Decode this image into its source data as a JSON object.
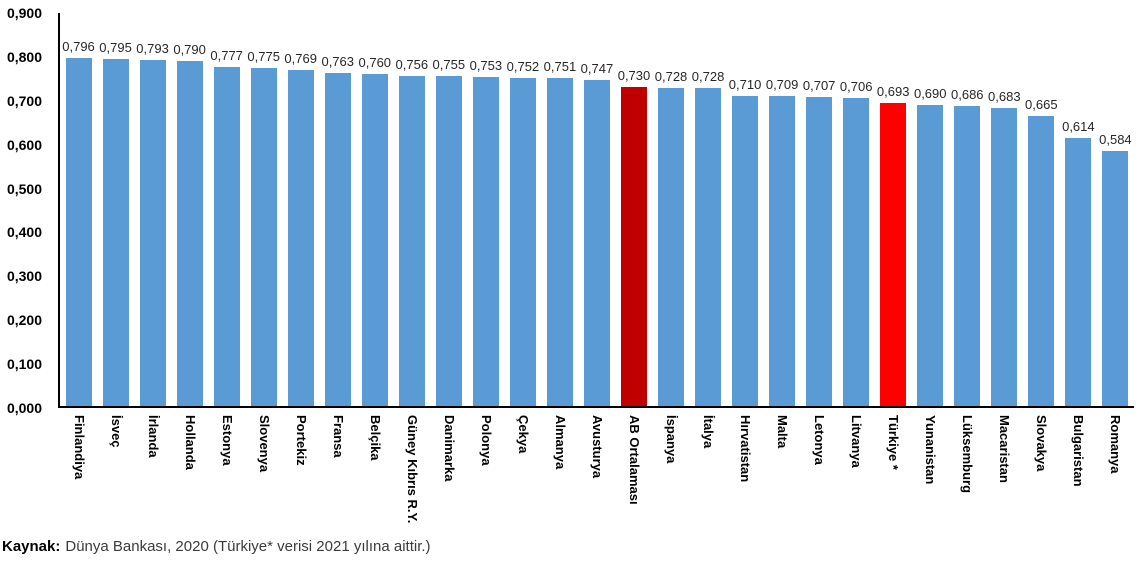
{
  "chart_data": {
    "type": "bar",
    "categories": [
      "Finlandiya",
      "İsveç",
      "İrlanda",
      "Hollanda",
      "Estonya",
      "Slovenya",
      "Portekiz",
      "Fransa",
      "Belçika",
      "Güney Kıbrıs R.Y.",
      "Danimarka",
      "Polonya",
      "Çekya",
      "Almanya",
      "Avusturya",
      "AB Ortalaması",
      "İspanya",
      "İtalya",
      "Hırvatistan",
      "Malta",
      "Letonya",
      "Litvanya",
      "Türkiye *",
      "Yunanistan",
      "Lüksemburg",
      "Macaristan",
      "Slovakya",
      "Bulgaristan",
      "Romanya"
    ],
    "values": [
      0.796,
      0.795,
      0.793,
      0.79,
      0.777,
      0.775,
      0.769,
      0.763,
      0.76,
      0.756,
      0.755,
      0.753,
      0.752,
      0.751,
      0.747,
      0.73,
      0.728,
      0.728,
      0.71,
      0.709,
      0.707,
      0.706,
      0.693,
      0.69,
      0.686,
      0.683,
      0.665,
      0.614,
      0.584
    ],
    "value_labels": [
      "0,796",
      "0,795",
      "0,793",
      "0,790",
      "0,777",
      "0,775",
      "0,769",
      "0,763",
      "0,760",
      "0,756",
      "0,755",
      "0,753",
      "0,752",
      "0,751",
      "0,747",
      "0,730",
      "0,728",
      "0,728",
      "0,710",
      "0,709",
      "0,707",
      "0,706",
      "0,693",
      "0,690",
      "0,686",
      "0,683",
      "0,665",
      "0,614",
      "0,584"
    ],
    "yticks": [
      "0,000",
      "0,100",
      "0,200",
      "0,300",
      "0,400",
      "0,500",
      "0,600",
      "0,700",
      "0,800",
      "0,900"
    ],
    "ylim": [
      0,
      0.9
    ],
    "grid": false,
    "legend": false,
    "bar_default_color": "#5B9BD5",
    "highlights": [
      {
        "category": "AB Ortalaması",
        "index": 15,
        "color": "#C00000"
      },
      {
        "category": "Türkiye *",
        "index": 22,
        "color": "#FF0000"
      }
    ]
  },
  "footer": {
    "source_label": "Kaynak:",
    "source_text": "Dünya Bankası, 2020 (Türkiye* verisi 2021 yılına aittir.)"
  }
}
